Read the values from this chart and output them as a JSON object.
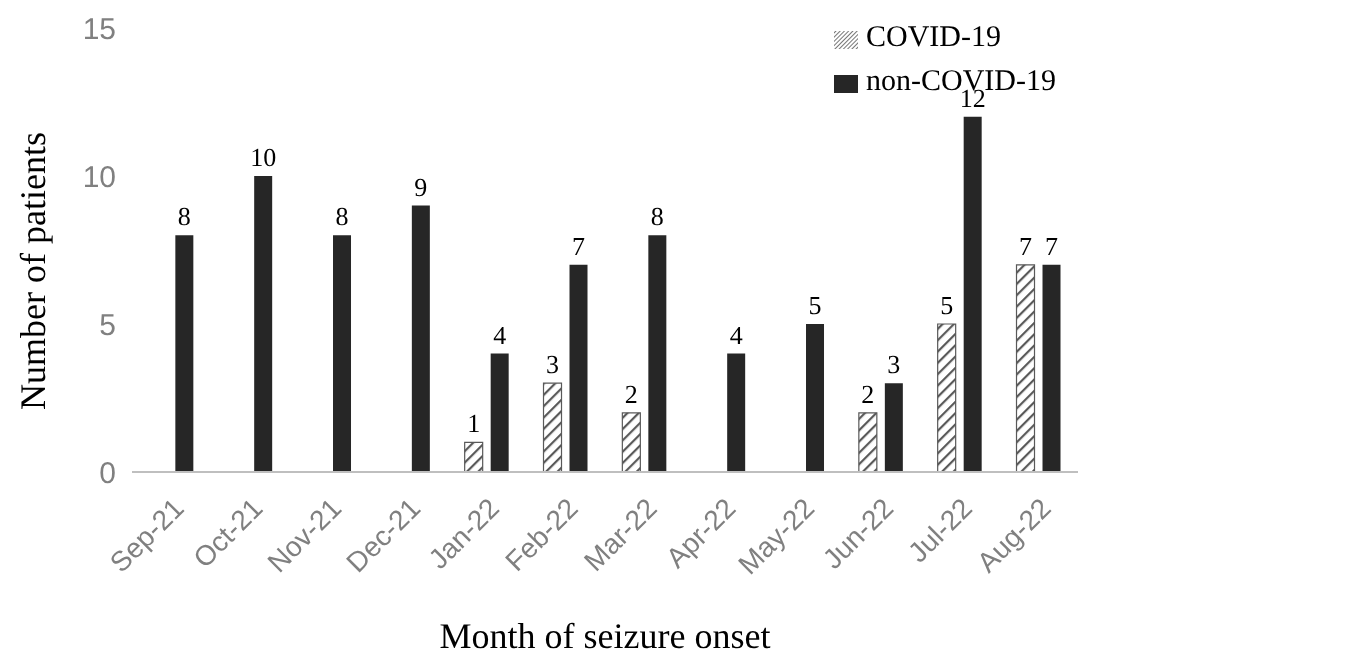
{
  "chart_data": {
    "type": "bar",
    "xlabel": "Month of seizure onset",
    "ylabel": "Number of patients",
    "categories": [
      "Sep-21",
      "Oct-21",
      "Nov-21",
      "Dec-21",
      "Jan-22",
      "Feb-22",
      "Mar-22",
      "Apr-22",
      "May-22",
      "Jun-22",
      "Jul-22",
      "Aug-22"
    ],
    "series": [
      {
        "name": "COVID-19",
        "color": "#595959",
        "values": [
          null,
          null,
          null,
          null,
          1,
          3,
          2,
          null,
          null,
          2,
          5,
          7
        ]
      },
      {
        "name": "non-COVID-19",
        "color": "#262626",
        "values": [
          8,
          10,
          8,
          9,
          4,
          7,
          8,
          4,
          5,
          3,
          12,
          7
        ]
      }
    ],
    "ylim": [
      0,
      15
    ],
    "yticks": [
      0,
      5,
      10,
      15
    ],
    "grid": false,
    "legend": "top right",
    "data_labels": true
  }
}
